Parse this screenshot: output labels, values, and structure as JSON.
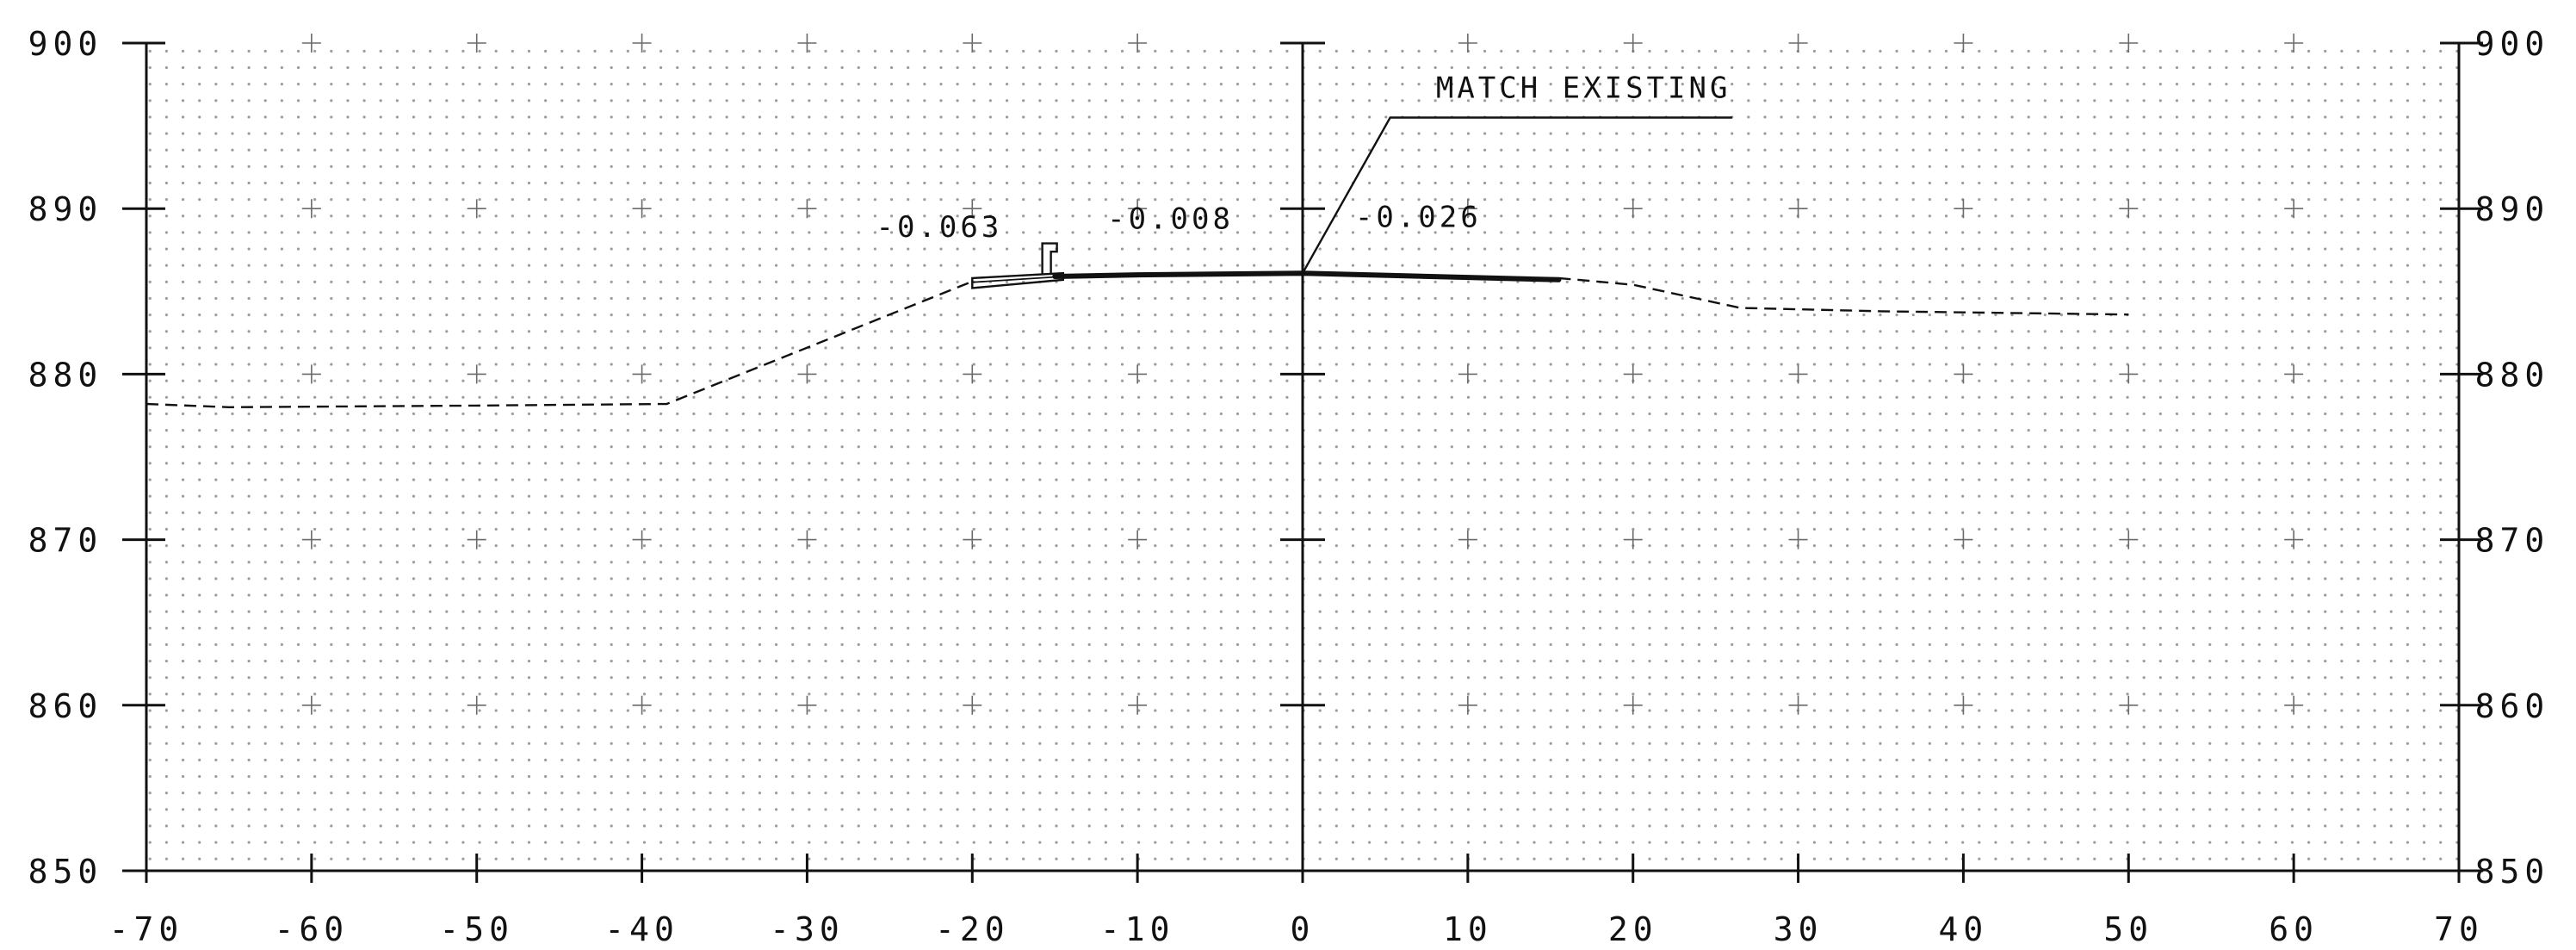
{
  "chart_data": {
    "type": "line",
    "title": "",
    "xlabel": "",
    "ylabel": "",
    "xlim": [
      -70,
      70
    ],
    "ylim": [
      850,
      900
    ],
    "x_ticks": [
      -70,
      -60,
      -50,
      -40,
      -30,
      -20,
      -10,
      0,
      10,
      20,
      30,
      40,
      50,
      60,
      70
    ],
    "x_tick_labels": [
      "-70",
      "-60",
      "-50",
      "-40",
      "-30",
      "-20",
      "-10",
      "0",
      "10",
      "20",
      "30",
      "40",
      "50",
      "60",
      "70"
    ],
    "y_ticks": [
      850,
      860,
      870,
      880,
      890,
      900
    ],
    "y_tick_labels": [
      "850",
      "860",
      "870",
      "880",
      "890",
      "900"
    ],
    "grid": "dotted background with crosses at every 10 units",
    "series": [
      {
        "style": "dashed",
        "color": "#111111",
        "points": [
          [
            -70,
            878.2
          ],
          [
            -65,
            878.0
          ],
          [
            -50,
            878.1
          ],
          [
            -38.5,
            878.2
          ],
          [
            -20,
            885.6
          ]
        ]
      },
      {
        "style": "dashed",
        "color": "#111111",
        "points": [
          [
            15.5,
            885.8
          ],
          [
            20,
            885.4
          ],
          [
            26.5,
            884.0
          ],
          [
            35,
            883.8
          ],
          [
            50,
            883.6
          ]
        ]
      },
      {
        "style": "solid-heavy",
        "color": "#111111",
        "points": [
          [
            -15,
            885.9
          ],
          [
            -10,
            886.0
          ],
          [
            0,
            886.1
          ],
          [
            15.5,
            885.7
          ]
        ]
      }
    ],
    "annotations": [
      {
        "text": "-0.063",
        "x": -22,
        "y": 888.3
      },
      {
        "text": "-0.008",
        "x": -8,
        "y": 888.8
      },
      {
        "text": "-0.026",
        "x": 7,
        "y": 888.9
      },
      {
        "text": "MATCH EXISTING",
        "x": 17,
        "y": 896.7
      }
    ],
    "leader": {
      "from": [
        0,
        886.1
      ],
      "knee": [
        5.3,
        895.5
      ],
      "to": [
        26,
        895.5
      ]
    },
    "centerline_x": 0,
    "curb_x_range": [
      -20,
      -14.5
    ],
    "rail_post_x": -15.5
  },
  "colors": {
    "ink": "#111111",
    "grid_dot": "#9a9a9a",
    "background": "#ffffff"
  }
}
